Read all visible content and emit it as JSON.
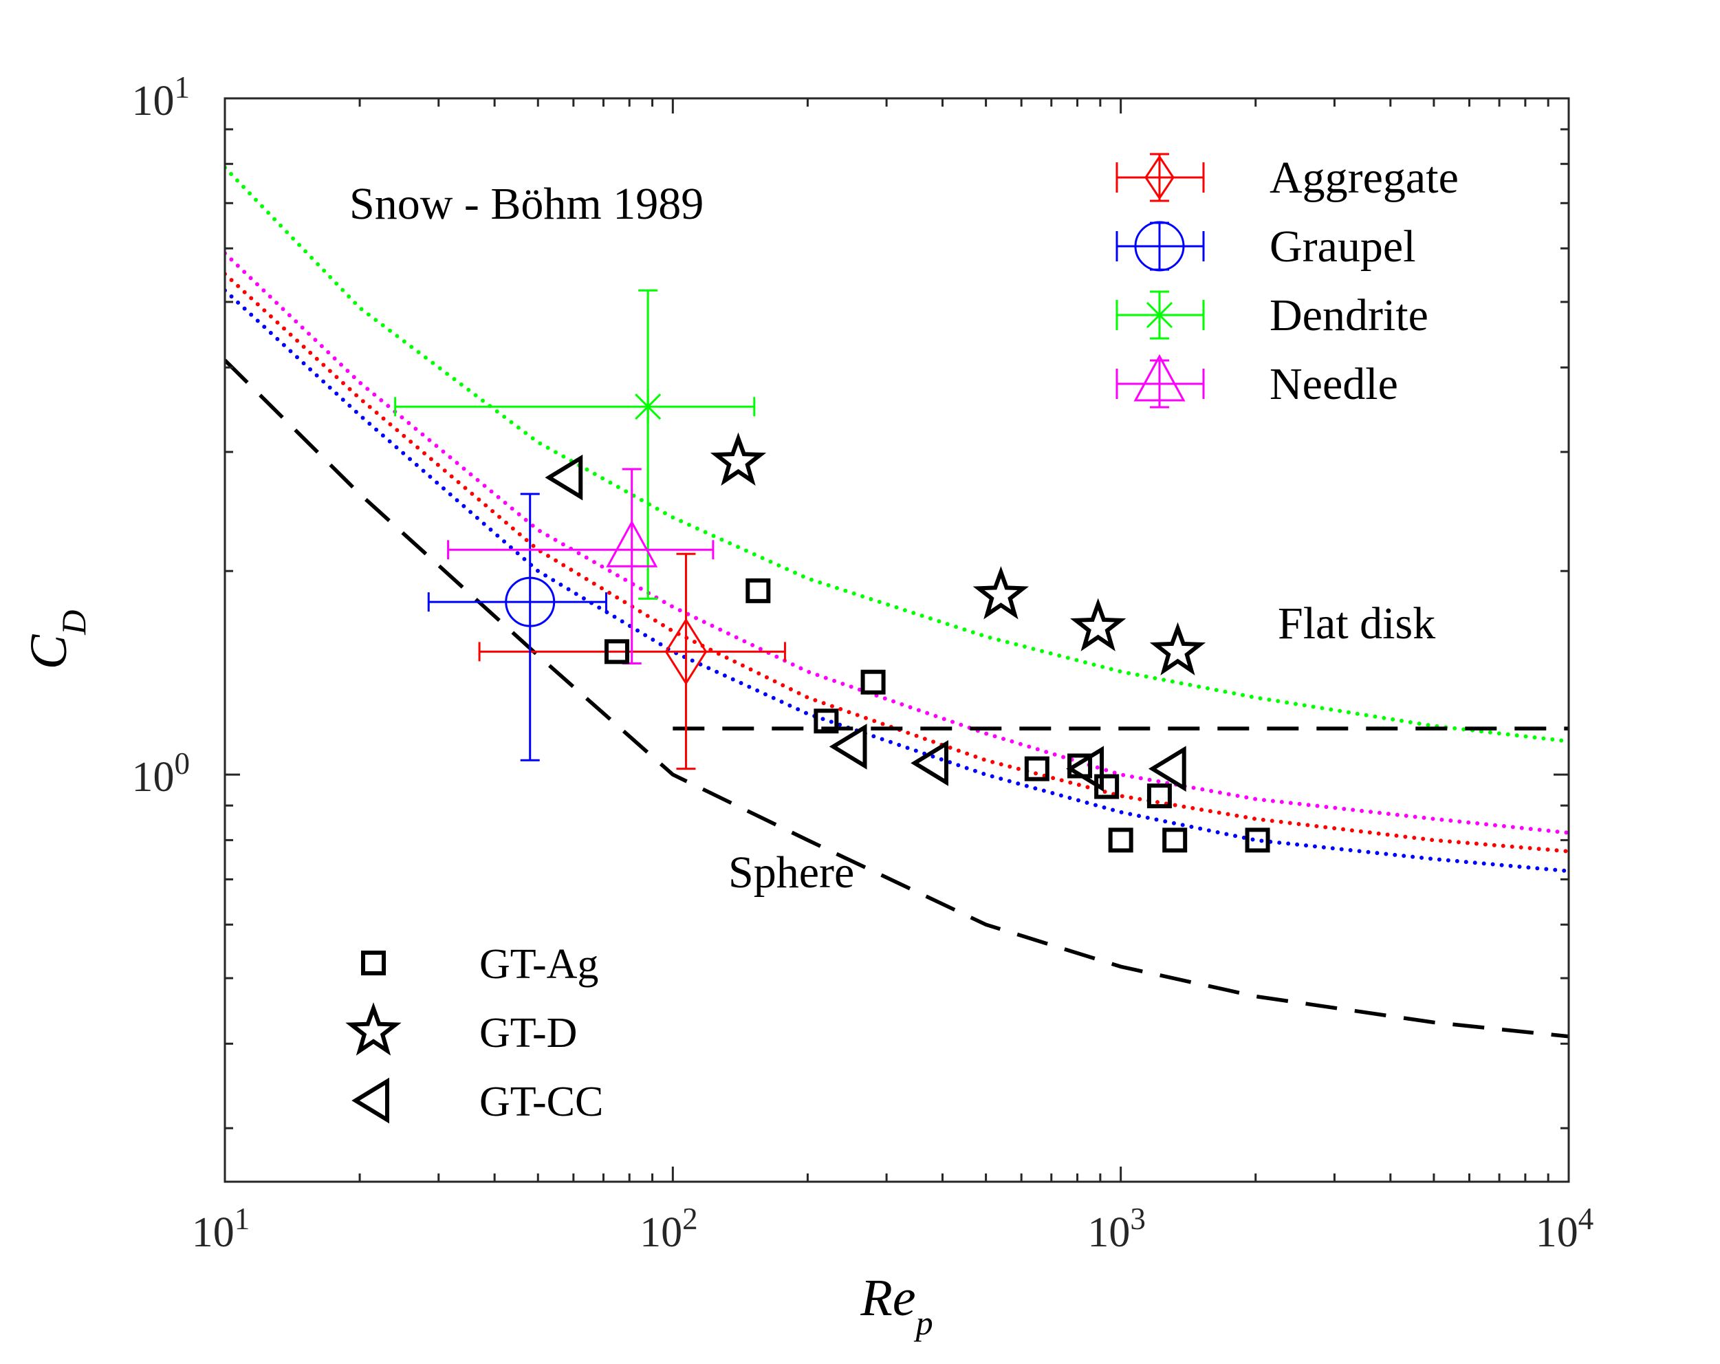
{
  "chart_data": {
    "type": "scatter",
    "title": "",
    "annotation_title": "Snow - Böhm 1989",
    "xlabel": {
      "main": "Re",
      "sub": "p"
    },
    "ylabel": {
      "main": "C",
      "sub": "D"
    },
    "xscale": "log",
    "yscale": "log",
    "xlim": [
      10,
      10000
    ],
    "ylim": [
      0.25,
      10
    ],
    "grid": false,
    "x_ticks": [
      {
        "base": "10",
        "exp": "1"
      },
      {
        "base": "10",
        "exp": "2"
      },
      {
        "base": "10",
        "exp": "3"
      },
      {
        "base": "10",
        "exp": "4"
      }
    ],
    "y_ticks": [
      {
        "base": "10",
        "exp": "0"
      },
      {
        "base": "10",
        "exp": "1"
      }
    ],
    "annotations": {
      "sphere": "Sphere",
      "flat_disk": "Flat disk"
    },
    "colors": {
      "Aggregate": "#ff0000",
      "Graupel": "#0000ff",
      "Dendrite": "#00ff00",
      "Needle": "#ff00ff",
      "reference": "#000000"
    },
    "errorbar_series": [
      {
        "name": "Aggregate",
        "marker": "diamond",
        "color": "#ff0000",
        "x": 107,
        "y": 1.52,
        "xerr": [
          37,
          178
        ],
        "yerr": [
          1.02,
          2.12
        ]
      },
      {
        "name": "Graupel",
        "marker": "circle",
        "color": "#0000ff",
        "x": 48,
        "y": 1.8,
        "xerr": [
          28.5,
          71
        ],
        "yerr": [
          1.05,
          2.6
        ]
      },
      {
        "name": "Dendrite",
        "marker": "x",
        "color": "#00ff00",
        "x": 88,
        "y": 3.5,
        "xerr": [
          24,
          152
        ],
        "yerr": [
          1.82,
          5.2
        ]
      },
      {
        "name": "Needle",
        "marker": "triangle-up",
        "color": "#ff00ff",
        "x": 81,
        "y": 2.15,
        "xerr": [
          31.5,
          123
        ],
        "yerr": [
          1.46,
          2.83
        ]
      }
    ],
    "scatter_series": [
      {
        "name": "GT-Ag",
        "marker": "square",
        "color": "#000000",
        "points": [
          [
            75,
            1.52
          ],
          [
            155,
            1.87
          ],
          [
            220,
            1.2
          ],
          [
            280,
            1.37
          ],
          [
            650,
            1.02
          ],
          [
            810,
            1.03
          ],
          [
            930,
            0.96
          ],
          [
            1000,
            0.8
          ],
          [
            1220,
            0.93
          ],
          [
            1320,
            0.8
          ],
          [
            2020,
            0.8
          ]
        ]
      },
      {
        "name": "GT-D",
        "marker": "star",
        "color": "#000000",
        "points": [
          [
            140,
            2.9
          ],
          [
            540,
            1.84
          ],
          [
            890,
            1.65
          ],
          [
            1340,
            1.52
          ]
        ]
      },
      {
        "name": "GT-CC",
        "marker": "triangle-left",
        "color": "#000000",
        "points": [
          [
            58,
            2.75
          ],
          [
            250,
            1.1
          ],
          [
            380,
            1.04
          ],
          [
            845,
            1.02
          ],
          [
            1290,
            1.02
          ]
        ]
      }
    ],
    "curves": [
      {
        "label": "Dendrite",
        "style": "dotted",
        "color": "#00ff00",
        "points": [
          [
            10,
            7.9
          ],
          [
            20,
            4.9
          ],
          [
            50,
            3.1
          ],
          [
            100,
            2.4
          ],
          [
            200,
            1.95
          ],
          [
            500,
            1.6
          ],
          [
            1000,
            1.42
          ],
          [
            2000,
            1.3
          ],
          [
            5000,
            1.18
          ],
          [
            10000,
            1.12
          ]
        ]
      },
      {
        "label": "Needle",
        "style": "dotted",
        "color": "#ff00ff",
        "points": [
          [
            10,
            5.9
          ],
          [
            20,
            3.8
          ],
          [
            50,
            2.3
          ],
          [
            100,
            1.77
          ],
          [
            200,
            1.42
          ],
          [
            500,
            1.15
          ],
          [
            1000,
            1.0
          ],
          [
            2000,
            0.92
          ],
          [
            5000,
            0.86
          ],
          [
            10000,
            0.82
          ]
        ]
      },
      {
        "label": "Aggregate",
        "style": "dotted",
        "color": "#ff0000",
        "points": [
          [
            10,
            5.5
          ],
          [
            20,
            3.6
          ],
          [
            50,
            2.15
          ],
          [
            100,
            1.63
          ],
          [
            200,
            1.3
          ],
          [
            500,
            1.05
          ],
          [
            1000,
            0.93
          ],
          [
            2000,
            0.86
          ],
          [
            5000,
            0.8
          ],
          [
            10000,
            0.77
          ]
        ]
      },
      {
        "label": "Graupel",
        "style": "dotted",
        "color": "#0000ff",
        "points": [
          [
            10,
            5.2
          ],
          [
            20,
            3.4
          ],
          [
            50,
            2.0
          ],
          [
            100,
            1.52
          ],
          [
            200,
            1.23
          ],
          [
            500,
            1.0
          ],
          [
            1000,
            0.88
          ],
          [
            2000,
            0.8
          ],
          [
            5000,
            0.75
          ],
          [
            10000,
            0.72
          ]
        ]
      },
      {
        "label": "Sphere",
        "style": "dashed",
        "color": "#000000",
        "points": [
          [
            10,
            4.1
          ],
          [
            20,
            2.6
          ],
          [
            50,
            1.5
          ],
          [
            100,
            1.0
          ],
          [
            200,
            0.8
          ],
          [
            500,
            0.6
          ],
          [
            1000,
            0.52
          ],
          [
            2000,
            0.47
          ],
          [
            5000,
            0.43
          ],
          [
            10000,
            0.41
          ]
        ]
      },
      {
        "label": "Flat disk",
        "style": "dashed",
        "color": "#000000",
        "points": [
          [
            100,
            1.17
          ],
          [
            10000,
            1.17
          ]
        ]
      }
    ]
  }
}
